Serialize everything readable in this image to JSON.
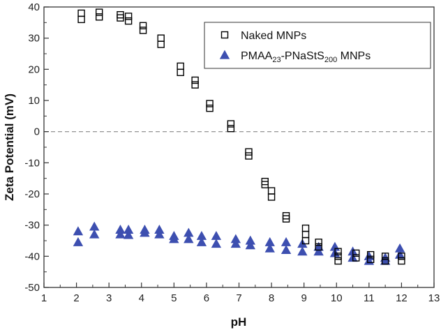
{
  "chart_data": {
    "type": "scatter",
    "xlabel": "pH",
    "ylabel": "Zeta Potential (mV)",
    "xlim": [
      1,
      13
    ],
    "ylim": [
      -50,
      40
    ],
    "x_ticks": [
      "1",
      "2",
      "3",
      "4",
      "5",
      "6",
      "7",
      "8",
      "9",
      "10",
      "11",
      "12",
      "13"
    ],
    "y_ticks": [
      "40",
      "30",
      "20",
      "10",
      "0",
      "-10",
      "-20",
      "-30",
      "-40",
      "-50"
    ],
    "reference_line": {
      "y": 0,
      "style": "dashed"
    },
    "legend_position": "top-right",
    "series": [
      {
        "name": "Naked MNPs",
        "name_parts": [
          {
            "text": "Naked MNPs",
            "sub": false
          }
        ],
        "marker": "open-square",
        "color": "#000000",
        "points": [
          [
            2.15,
            38
          ],
          [
            2.15,
            36
          ],
          [
            2.7,
            38.3
          ],
          [
            2.7,
            36.8
          ],
          [
            3.35,
            37.5
          ],
          [
            3.35,
            36.5
          ],
          [
            3.6,
            37
          ],
          [
            3.6,
            35.5
          ],
          [
            4.05,
            34
          ],
          [
            4.05,
            32.5
          ],
          [
            4.6,
            30
          ],
          [
            4.6,
            28
          ],
          [
            5.2,
            21
          ],
          [
            5.2,
            19
          ],
          [
            5.65,
            16.5
          ],
          [
            5.65,
            15
          ],
          [
            6.1,
            9
          ],
          [
            6.1,
            7.5
          ],
          [
            6.75,
            2.5
          ],
          [
            6.75,
            1
          ],
          [
            7.3,
            -6.5
          ],
          [
            7.3,
            -7.8
          ],
          [
            7.8,
            -16
          ],
          [
            7.8,
            -17
          ],
          [
            8.0,
            -19
          ],
          [
            8.0,
            -21
          ],
          [
            8.45,
            -27
          ],
          [
            8.45,
            -28
          ],
          [
            9.05,
            -31
          ],
          [
            9.05,
            -33
          ],
          [
            9.05,
            -35
          ],
          [
            9.45,
            -35.5
          ],
          [
            9.45,
            -37
          ],
          [
            10.05,
            -38.5
          ],
          [
            10.05,
            -40
          ],
          [
            10.05,
            -41.5
          ],
          [
            10.6,
            -39
          ],
          [
            10.6,
            -40.5
          ],
          [
            11.05,
            -39.5
          ],
          [
            11.05,
            -41
          ],
          [
            11.5,
            -40
          ],
          [
            11.5,
            -41.5
          ],
          [
            12.0,
            -40
          ],
          [
            12.0,
            -41.5
          ]
        ]
      },
      {
        "name": "PMAA23-PNaStS200 MNPs",
        "name_parts": [
          {
            "text": "PMAA",
            "sub": false
          },
          {
            "text": "23",
            "sub": true
          },
          {
            "text": "-PNaStS",
            "sub": false
          },
          {
            "text": "200",
            "sub": true
          },
          {
            "text": " MNPs",
            "sub": false
          }
        ],
        "marker": "filled-triangle",
        "color": "#3d4fb0",
        "points": [
          [
            2.05,
            -32
          ],
          [
            2.05,
            -35.5
          ],
          [
            2.55,
            -30.5
          ],
          [
            2.55,
            -33
          ],
          [
            3.35,
            -31.5
          ],
          [
            3.35,
            -33
          ],
          [
            3.6,
            -31.5
          ],
          [
            3.6,
            -33.2
          ],
          [
            4.1,
            -31.5
          ],
          [
            4.1,
            -32.5
          ],
          [
            4.55,
            -31.5
          ],
          [
            4.55,
            -33
          ],
          [
            5.0,
            -33.5
          ],
          [
            5.0,
            -34.5
          ],
          [
            5.45,
            -32.5
          ],
          [
            5.45,
            -34.5
          ],
          [
            5.85,
            -33.5
          ],
          [
            5.85,
            -35.5
          ],
          [
            6.3,
            -33.5
          ],
          [
            6.3,
            -36
          ],
          [
            6.9,
            -34.5
          ],
          [
            6.9,
            -36
          ],
          [
            7.35,
            -35
          ],
          [
            7.35,
            -36.5
          ],
          [
            7.95,
            -35.5
          ],
          [
            7.95,
            -37.5
          ],
          [
            8.45,
            -35.5
          ],
          [
            8.45,
            -38
          ],
          [
            8.95,
            -36
          ],
          [
            8.95,
            -38.5
          ],
          [
            9.45,
            -37
          ],
          [
            9.45,
            -38.5
          ],
          [
            9.95,
            -37
          ],
          [
            9.95,
            -39
          ],
          [
            10.5,
            -38.5
          ],
          [
            10.5,
            -40.5
          ],
          [
            11.0,
            -40
          ],
          [
            11.0,
            -41.5
          ],
          [
            11.5,
            -40.5
          ],
          [
            11.5,
            -41.5
          ],
          [
            11.95,
            -37.5
          ],
          [
            11.95,
            -39.5
          ]
        ]
      }
    ]
  }
}
